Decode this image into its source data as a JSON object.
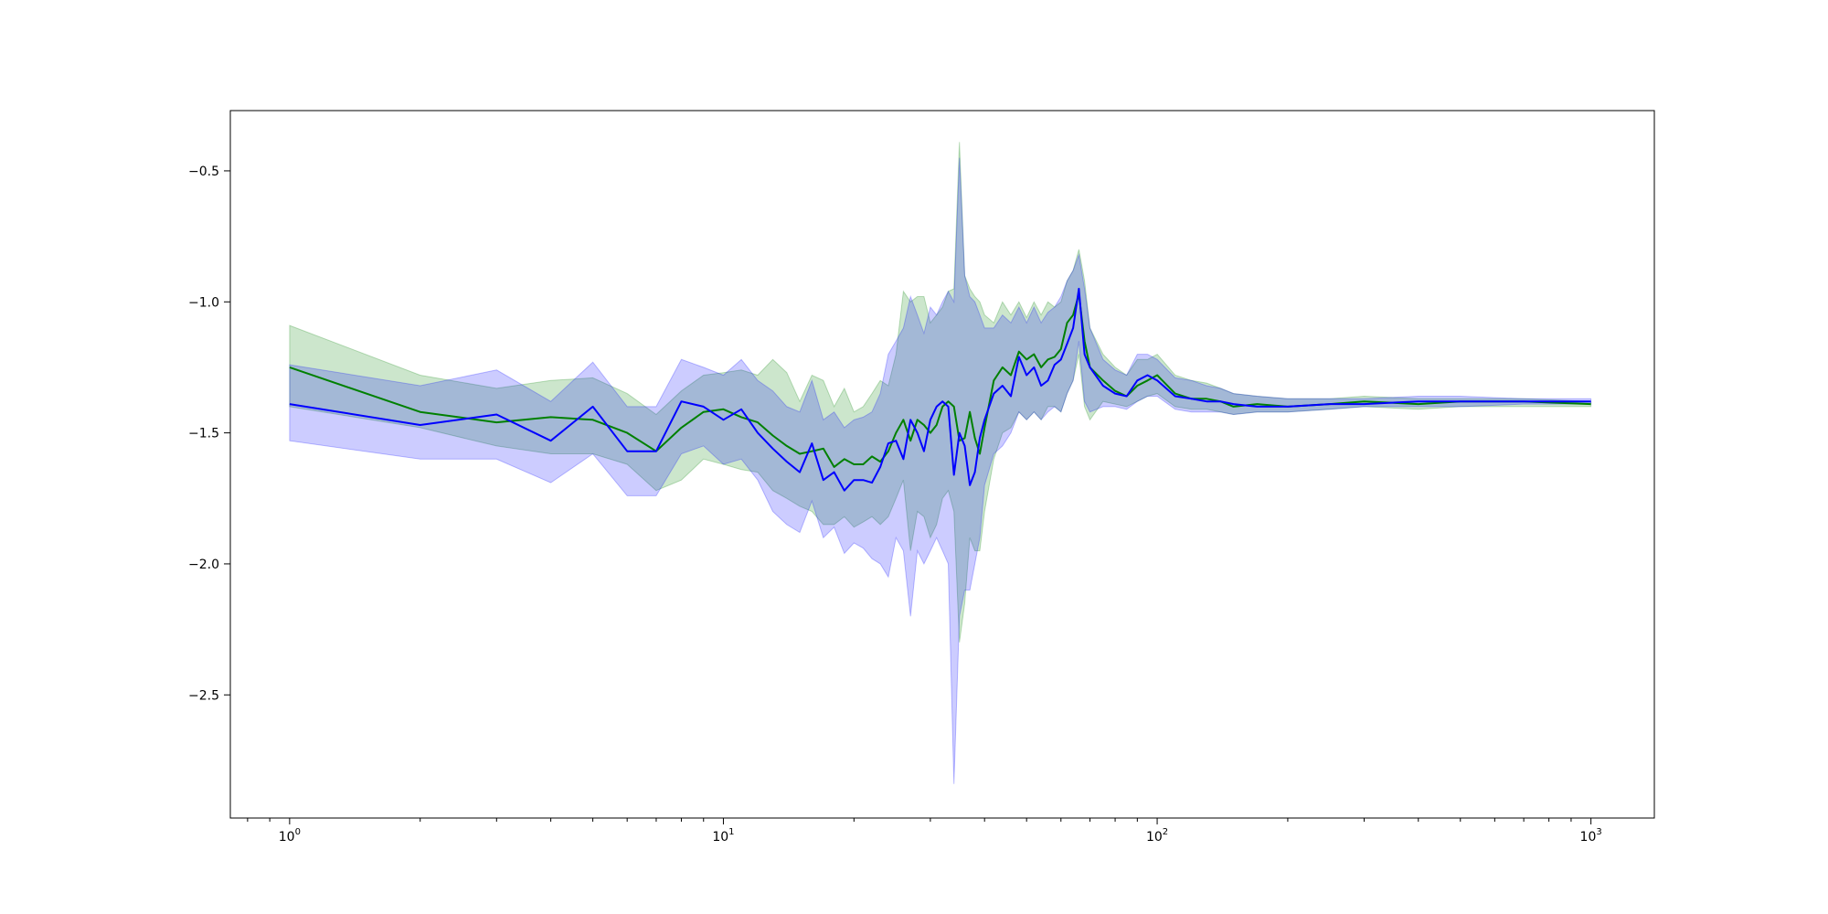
{
  "chart_data": {
    "type": "line",
    "title": "",
    "xlabel": "",
    "ylabel": "",
    "xscale": "log",
    "xlim": [
      0.73,
      1400
    ],
    "ylim": [
      -2.97,
      -0.27
    ],
    "grid": false,
    "legend": "none",
    "x_ticks": [
      1,
      10,
      100,
      1000
    ],
    "x_tick_labels": [
      {
        "base": "10",
        "exp": "0"
      },
      {
        "base": "10",
        "exp": "1"
      },
      {
        "base": "10",
        "exp": "2"
      },
      {
        "base": "10",
        "exp": "3"
      }
    ],
    "y_ticks": [
      -0.5,
      -1.0,
      -1.5,
      -2.0,
      -2.5
    ],
    "y_tick_labels": [
      "−0.5",
      "−1.0",
      "−1.5",
      "−2.0",
      "−2.5"
    ],
    "series": [
      {
        "color": "#008000",
        "band_color": "#008000",
        "band_opacity": 0.2,
        "x": [
          1,
          2,
          3,
          4,
          5,
          6,
          7,
          8,
          9,
          10,
          11,
          12,
          13,
          14,
          15,
          16,
          17,
          18,
          19,
          20,
          21,
          22,
          23,
          24,
          25,
          26,
          27,
          28,
          29,
          30,
          31,
          32,
          33,
          34,
          35,
          36,
          37,
          38,
          39,
          40,
          42,
          44,
          46,
          48,
          50,
          52,
          54,
          56,
          58,
          60,
          62,
          64,
          66,
          68,
          70,
          75,
          80,
          85,
          90,
          95,
          100,
          110,
          120,
          130,
          140,
          150,
          170,
          200,
          250,
          300,
          400,
          500,
          700,
          1000
        ],
        "mean": [
          -1.25,
          -1.42,
          -1.46,
          -1.44,
          -1.45,
          -1.5,
          -1.57,
          -1.48,
          -1.42,
          -1.41,
          -1.44,
          -1.46,
          -1.51,
          -1.55,
          -1.58,
          -1.57,
          -1.56,
          -1.63,
          -1.6,
          -1.62,
          -1.62,
          -1.59,
          -1.61,
          -1.57,
          -1.5,
          -1.45,
          -1.53,
          -1.45,
          -1.47,
          -1.5,
          -1.47,
          -1.4,
          -1.38,
          -1.4,
          -1.53,
          -1.52,
          -1.42,
          -1.52,
          -1.58,
          -1.48,
          -1.3,
          -1.25,
          -1.28,
          -1.19,
          -1.22,
          -1.2,
          -1.25,
          -1.22,
          -1.21,
          -1.18,
          -1.08,
          -1.05,
          -0.97,
          -1.15,
          -1.25,
          -1.3,
          -1.34,
          -1.36,
          -1.32,
          -1.3,
          -1.28,
          -1.35,
          -1.37,
          -1.37,
          -1.38,
          -1.4,
          -1.39,
          -1.4,
          -1.39,
          -1.38,
          -1.39,
          -1.38,
          -1.38,
          -1.39
        ],
        "lower": [
          -1.4,
          -1.48,
          -1.55,
          -1.58,
          -1.58,
          -1.62,
          -1.72,
          -1.68,
          -1.6,
          -1.62,
          -1.64,
          -1.65,
          -1.72,
          -1.75,
          -1.78,
          -1.8,
          -1.85,
          -1.85,
          -1.82,
          -1.86,
          -1.84,
          -1.82,
          -1.85,
          -1.82,
          -1.75,
          -1.68,
          -1.95,
          -1.8,
          -1.82,
          -1.9,
          -1.85,
          -1.75,
          -1.72,
          -1.8,
          -2.3,
          -2.15,
          -1.9,
          -1.95,
          -1.95,
          -1.8,
          -1.6,
          -1.5,
          -1.48,
          -1.42,
          -1.45,
          -1.42,
          -1.45,
          -1.4,
          -1.4,
          -1.42,
          -1.35,
          -1.3,
          -1.2,
          -1.4,
          -1.45,
          -1.38,
          -1.39,
          -1.4,
          -1.38,
          -1.36,
          -1.35,
          -1.4,
          -1.41,
          -1.41,
          -1.42,
          -1.43,
          -1.42,
          -1.42,
          -1.41,
          -1.4,
          -1.41,
          -1.4,
          -1.4,
          -1.4
        ],
        "upper": [
          -1.09,
          -1.28,
          -1.33,
          -1.3,
          -1.29,
          -1.35,
          -1.43,
          -1.34,
          -1.28,
          -1.27,
          -1.26,
          -1.28,
          -1.22,
          -1.27,
          -1.38,
          -1.28,
          -1.3,
          -1.4,
          -1.33,
          -1.42,
          -1.4,
          -1.35,
          -1.3,
          -1.32,
          -1.2,
          -0.96,
          -1.0,
          -0.98,
          -0.98,
          -1.08,
          -1.05,
          -1.02,
          -0.96,
          -0.95,
          -0.39,
          -0.9,
          -0.95,
          -0.98,
          -1.0,
          -1.05,
          -1.08,
          -1.0,
          -1.05,
          -1.0,
          -1.06,
          -1.0,
          -1.05,
          -1.0,
          -1.02,
          -1.0,
          -0.92,
          -0.88,
          -0.8,
          -0.92,
          -1.1,
          -1.2,
          -1.25,
          -1.28,
          -1.22,
          -1.22,
          -1.2,
          -1.28,
          -1.3,
          -1.31,
          -1.33,
          -1.35,
          -1.36,
          -1.37,
          -1.37,
          -1.36,
          -1.37,
          -1.37,
          -1.37,
          -1.38
        ]
      },
      {
        "color": "#0000ff",
        "band_color": "#0000ff",
        "band_opacity": 0.2,
        "x": [
          1,
          2,
          3,
          4,
          5,
          6,
          7,
          8,
          9,
          10,
          11,
          12,
          13,
          14,
          15,
          16,
          17,
          18,
          19,
          20,
          21,
          22,
          23,
          24,
          25,
          26,
          27,
          28,
          29,
          30,
          31,
          32,
          33,
          34,
          35,
          36,
          37,
          38,
          39,
          40,
          42,
          44,
          46,
          48,
          50,
          52,
          54,
          56,
          58,
          60,
          62,
          64,
          66,
          68,
          70,
          75,
          80,
          85,
          90,
          95,
          100,
          110,
          120,
          130,
          140,
          150,
          170,
          200,
          250,
          300,
          400,
          500,
          700,
          1000
        ],
        "mean": [
          -1.39,
          -1.47,
          -1.43,
          -1.53,
          -1.4,
          -1.57,
          -1.57,
          -1.38,
          -1.4,
          -1.45,
          -1.41,
          -1.5,
          -1.56,
          -1.61,
          -1.65,
          -1.54,
          -1.68,
          -1.65,
          -1.72,
          -1.68,
          -1.68,
          -1.69,
          -1.63,
          -1.54,
          -1.53,
          -1.6,
          -1.45,
          -1.5,
          -1.57,
          -1.45,
          -1.4,
          -1.38,
          -1.4,
          -1.66,
          -1.5,
          -1.55,
          -1.7,
          -1.65,
          -1.52,
          -1.45,
          -1.35,
          -1.32,
          -1.36,
          -1.21,
          -1.28,
          -1.25,
          -1.32,
          -1.3,
          -1.24,
          -1.22,
          -1.16,
          -1.1,
          -0.95,
          -1.2,
          -1.25,
          -1.32,
          -1.35,
          -1.36,
          -1.3,
          -1.28,
          -1.3,
          -1.36,
          -1.37,
          -1.38,
          -1.38,
          -1.39,
          -1.4,
          -1.4,
          -1.39,
          -1.39,
          -1.38,
          -1.38,
          -1.38,
          -1.38
        ],
        "lower": [
          -1.53,
          -1.6,
          -1.6,
          -1.69,
          -1.58,
          -1.74,
          -1.74,
          -1.58,
          -1.55,
          -1.62,
          -1.6,
          -1.68,
          -1.8,
          -1.85,
          -1.88,
          -1.76,
          -1.9,
          -1.86,
          -1.96,
          -1.92,
          -1.94,
          -1.98,
          -2.0,
          -2.05,
          -1.9,
          -1.95,
          -2.2,
          -1.95,
          -2.0,
          -1.95,
          -1.9,
          -1.95,
          -2.0,
          -2.84,
          -2.2,
          -2.1,
          -2.1,
          -2.0,
          -1.9,
          -1.7,
          -1.58,
          -1.55,
          -1.5,
          -1.42,
          -1.45,
          -1.42,
          -1.45,
          -1.42,
          -1.4,
          -1.42,
          -1.35,
          -1.3,
          -1.15,
          -1.38,
          -1.42,
          -1.4,
          -1.4,
          -1.41,
          -1.38,
          -1.36,
          -1.36,
          -1.41,
          -1.42,
          -1.42,
          -1.42,
          -1.43,
          -1.42,
          -1.42,
          -1.41,
          -1.4,
          -1.4,
          -1.4,
          -1.39,
          -1.39
        ],
        "upper": [
          -1.24,
          -1.32,
          -1.26,
          -1.38,
          -1.23,
          -1.4,
          -1.4,
          -1.22,
          -1.25,
          -1.28,
          -1.22,
          -1.3,
          -1.34,
          -1.4,
          -1.42,
          -1.3,
          -1.45,
          -1.42,
          -1.48,
          -1.45,
          -1.44,
          -1.42,
          -1.35,
          -1.2,
          -1.15,
          -1.1,
          -0.98,
          -1.05,
          -1.12,
          -1.02,
          -1.05,
          -1.0,
          -0.96,
          -1.0,
          -0.45,
          -0.9,
          -0.98,
          -1.0,
          -1.05,
          -1.1,
          -1.1,
          -1.05,
          -1.08,
          -1.02,
          -1.08,
          -1.02,
          -1.08,
          -1.04,
          -1.02,
          -0.98,
          -0.92,
          -0.88,
          -0.82,
          -0.95,
          -1.1,
          -1.22,
          -1.26,
          -1.28,
          -1.2,
          -1.2,
          -1.22,
          -1.29,
          -1.3,
          -1.32,
          -1.33,
          -1.35,
          -1.36,
          -1.37,
          -1.37,
          -1.37,
          -1.36,
          -1.36,
          -1.37,
          -1.37
        ]
      }
    ]
  }
}
